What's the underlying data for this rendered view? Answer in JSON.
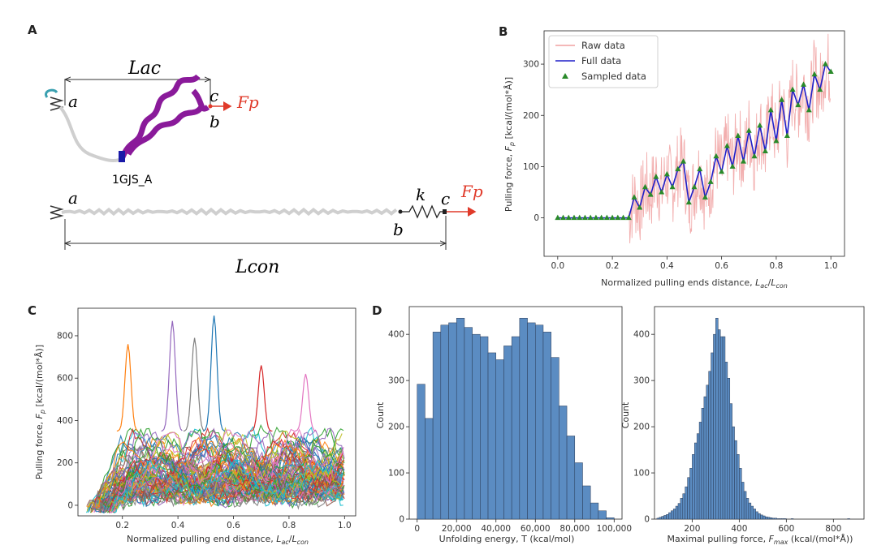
{
  "panels": {
    "A": {
      "letter": "A",
      "labels": {
        "L_ac": "Lac",
        "L_con": "Lcon",
        "a": "a",
        "b": "b",
        "c": "c",
        "k": "k",
        "Fp": "Fp",
        "protein": "1GJS_A"
      },
      "colors": {
        "helix": "#8a1a9a",
        "force": "#e03a2a",
        "chain": "#cfcfcf",
        "end": "#1a1aa8",
        "loop": "#3aa0b0"
      }
    },
    "B": {
      "letter": "B"
    },
    "C": {
      "letter": "C"
    },
    "D": {
      "letter": "D"
    }
  },
  "chart_data": [
    {
      "panel": "B",
      "type": "line",
      "xlabel": "Normalized pulling ends distance, Lac/Lcon",
      "ylabel": "Pulling force, Fp [kcal/(mol*Å)]",
      "xlim": [
        -0.05,
        1.05
      ],
      "ylim": [
        -75,
        365
      ],
      "xticks": [
        "0.0",
        "0.2",
        "0.4",
        "0.6",
        "0.8",
        "1.0"
      ],
      "yticks": [
        "0",
        "100",
        "200",
        "300"
      ],
      "legend": {
        "placement": "top-left",
        "entries": [
          "Raw data",
          "Full data",
          "Sampled data"
        ]
      },
      "series": [
        {
          "name": "Full data",
          "color": "#1f1fc8",
          "x": [
            0.0,
            0.26,
            0.28,
            0.3,
            0.32,
            0.34,
            0.36,
            0.38,
            0.4,
            0.42,
            0.44,
            0.46,
            0.48,
            0.5,
            0.52,
            0.54,
            0.56,
            0.58,
            0.6,
            0.62,
            0.64,
            0.66,
            0.68,
            0.7,
            0.72,
            0.74,
            0.76,
            0.78,
            0.8,
            0.82,
            0.84,
            0.86,
            0.88,
            0.9,
            0.92,
            0.94,
            0.96,
            0.98,
            1.0
          ],
          "y": [
            0,
            0,
            40,
            20,
            60,
            45,
            80,
            50,
            85,
            60,
            95,
            110,
            30,
            60,
            95,
            40,
            70,
            120,
            90,
            140,
            100,
            160,
            110,
            170,
            120,
            180,
            130,
            210,
            150,
            230,
            160,
            250,
            220,
            260,
            210,
            280,
            250,
            300,
            285
          ]
        },
        {
          "name": "Sampled data",
          "color": "#2a8a2a",
          "x": [
            0.0,
            0.02,
            0.04,
            0.06,
            0.08,
            0.1,
            0.12,
            0.14,
            0.16,
            0.18,
            0.2,
            0.22,
            0.24,
            0.26,
            0.28,
            0.3,
            0.32,
            0.34,
            0.36,
            0.38,
            0.4,
            0.42,
            0.44,
            0.46,
            0.48,
            0.5,
            0.52,
            0.54,
            0.56,
            0.58,
            0.6,
            0.62,
            0.64,
            0.66,
            0.68,
            0.7,
            0.72,
            0.74,
            0.76,
            0.78,
            0.8,
            0.82,
            0.84,
            0.86,
            0.88,
            0.9,
            0.92,
            0.94,
            0.96,
            0.98,
            1.0
          ],
          "y": [
            0,
            0,
            0,
            0,
            0,
            0,
            0,
            0,
            0,
            0,
            0,
            0,
            0,
            0,
            40,
            20,
            60,
            45,
            80,
            50,
            85,
            60,
            95,
            110,
            30,
            60,
            95,
            40,
            70,
            120,
            90,
            140,
            100,
            160,
            110,
            170,
            120,
            180,
            130,
            210,
            150,
            230,
            160,
            250,
            220,
            260,
            210,
            280,
            250,
            300,
            285
          ]
        }
      ]
    },
    {
      "panel": "C",
      "type": "line",
      "xlabel": "Normalized pulling end distance, Lac/Lcon",
      "ylabel": "Pulling force, Fp [kcal/(mol*Å)]",
      "xlim": [
        0.04,
        1.04
      ],
      "ylim": [
        -50,
        930
      ],
      "xticks": [
        "0.2",
        "0.4",
        "0.6",
        "0.8",
        "1.0"
      ],
      "yticks": [
        "0",
        "200",
        "400",
        "600",
        "800"
      ],
      "series_count_note": "many overlapping colored curves",
      "peaks": [
        {
          "x": 0.22,
          "y": 760
        },
        {
          "x": 0.38,
          "y": 870
        },
        {
          "x": 0.46,
          "y": 790
        },
        {
          "x": 0.53,
          "y": 895
        },
        {
          "x": 0.7,
          "y": 660
        },
        {
          "x": 0.86,
          "y": 620
        }
      ]
    },
    {
      "panel": "D-left",
      "type": "bar",
      "xlabel": "Unfolding energy, T (kcal/mol)",
      "ylabel": "Count",
      "xlim": [
        -4000,
        104000
      ],
      "ylim": [
        0,
        460
      ],
      "xticks": [
        "0",
        "20,000",
        "40,000",
        "60,000",
        "80,000",
        "100,000"
      ],
      "yticks": [
        "0",
        "100",
        "200",
        "300",
        "400"
      ],
      "bin_start": 0,
      "bin_width": 4000,
      "values": [
        292,
        218,
        405,
        420,
        425,
        435,
        415,
        400,
        395,
        360,
        345,
        375,
        395,
        435,
        425,
        420,
        405,
        350,
        245,
        180,
        122,
        72,
        35,
        18,
        3
      ]
    },
    {
      "panel": "D-right",
      "type": "bar",
      "xlabel": "Maximal pulling force, Fmax (kcal/(mol*Å))",
      "ylabel": "Count",
      "xlim": [
        40,
        930
      ],
      "ylim": [
        0,
        460
      ],
      "xticks": [
        "200",
        "400",
        "600",
        "800"
      ],
      "yticks": [
        "0",
        "100",
        "200",
        "300",
        "400"
      ],
      "bin_start": 50,
      "bin_width": 10,
      "values": [
        2,
        4,
        6,
        8,
        10,
        14,
        18,
        22,
        28,
        34,
        45,
        55,
        70,
        90,
        110,
        140,
        165,
        185,
        210,
        240,
        265,
        290,
        320,
        360,
        400,
        435,
        410,
        395,
        395,
        340,
        305,
        250,
        200,
        170,
        140,
        110,
        80,
        60,
        45,
        35,
        28,
        22,
        16,
        12,
        9,
        7,
        5,
        4,
        3,
        2,
        2,
        1,
        1,
        1,
        1,
        0,
        0,
        1,
        0,
        0,
        0,
        0,
        0,
        0,
        0,
        0,
        0,
        0,
        0,
        0,
        0,
        0,
        0,
        0,
        0,
        0,
        0,
        0,
        0,
        0,
        0,
        1
      ]
    }
  ]
}
